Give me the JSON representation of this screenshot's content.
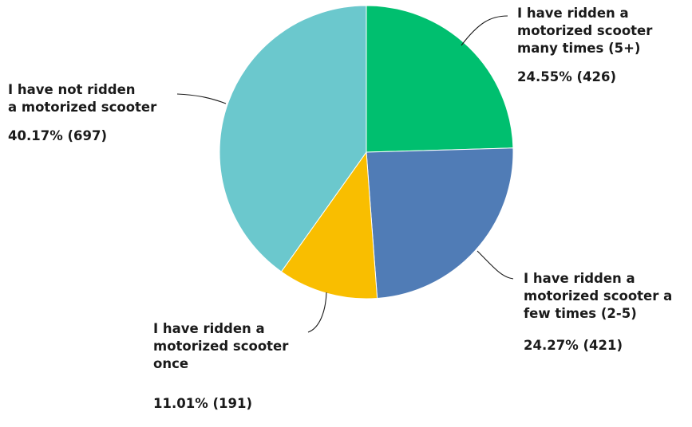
{
  "chart_data": {
    "type": "pie",
    "title": "",
    "slices": [
      {
        "label_lines": [
          "I have ridden a",
          "motorized scooter",
          "many times (5+)"
        ],
        "percent_label": "24.55% (426)",
        "percent": 24.55,
        "count": 426,
        "color": "#00bf6f"
      },
      {
        "label_lines": [
          "I have ridden a",
          "motorized scooter a",
          "few times (2-5)"
        ],
        "percent_label": "24.27% (421)",
        "percent": 24.27,
        "count": 421,
        "color": "#507cb6"
      },
      {
        "label_lines": [
          "I have ridden a",
          "motorized scooter",
          "once"
        ],
        "percent_label": "11.01% (191)",
        "percent": 11.01,
        "count": 191,
        "color": "#f9be00"
      },
      {
        "label_lines": [
          "I have not ridden",
          "a motorized scooter"
        ],
        "percent_label": "40.17% (697)",
        "percent": 40.17,
        "count": 697,
        "color": "#6bc8cd"
      }
    ]
  }
}
